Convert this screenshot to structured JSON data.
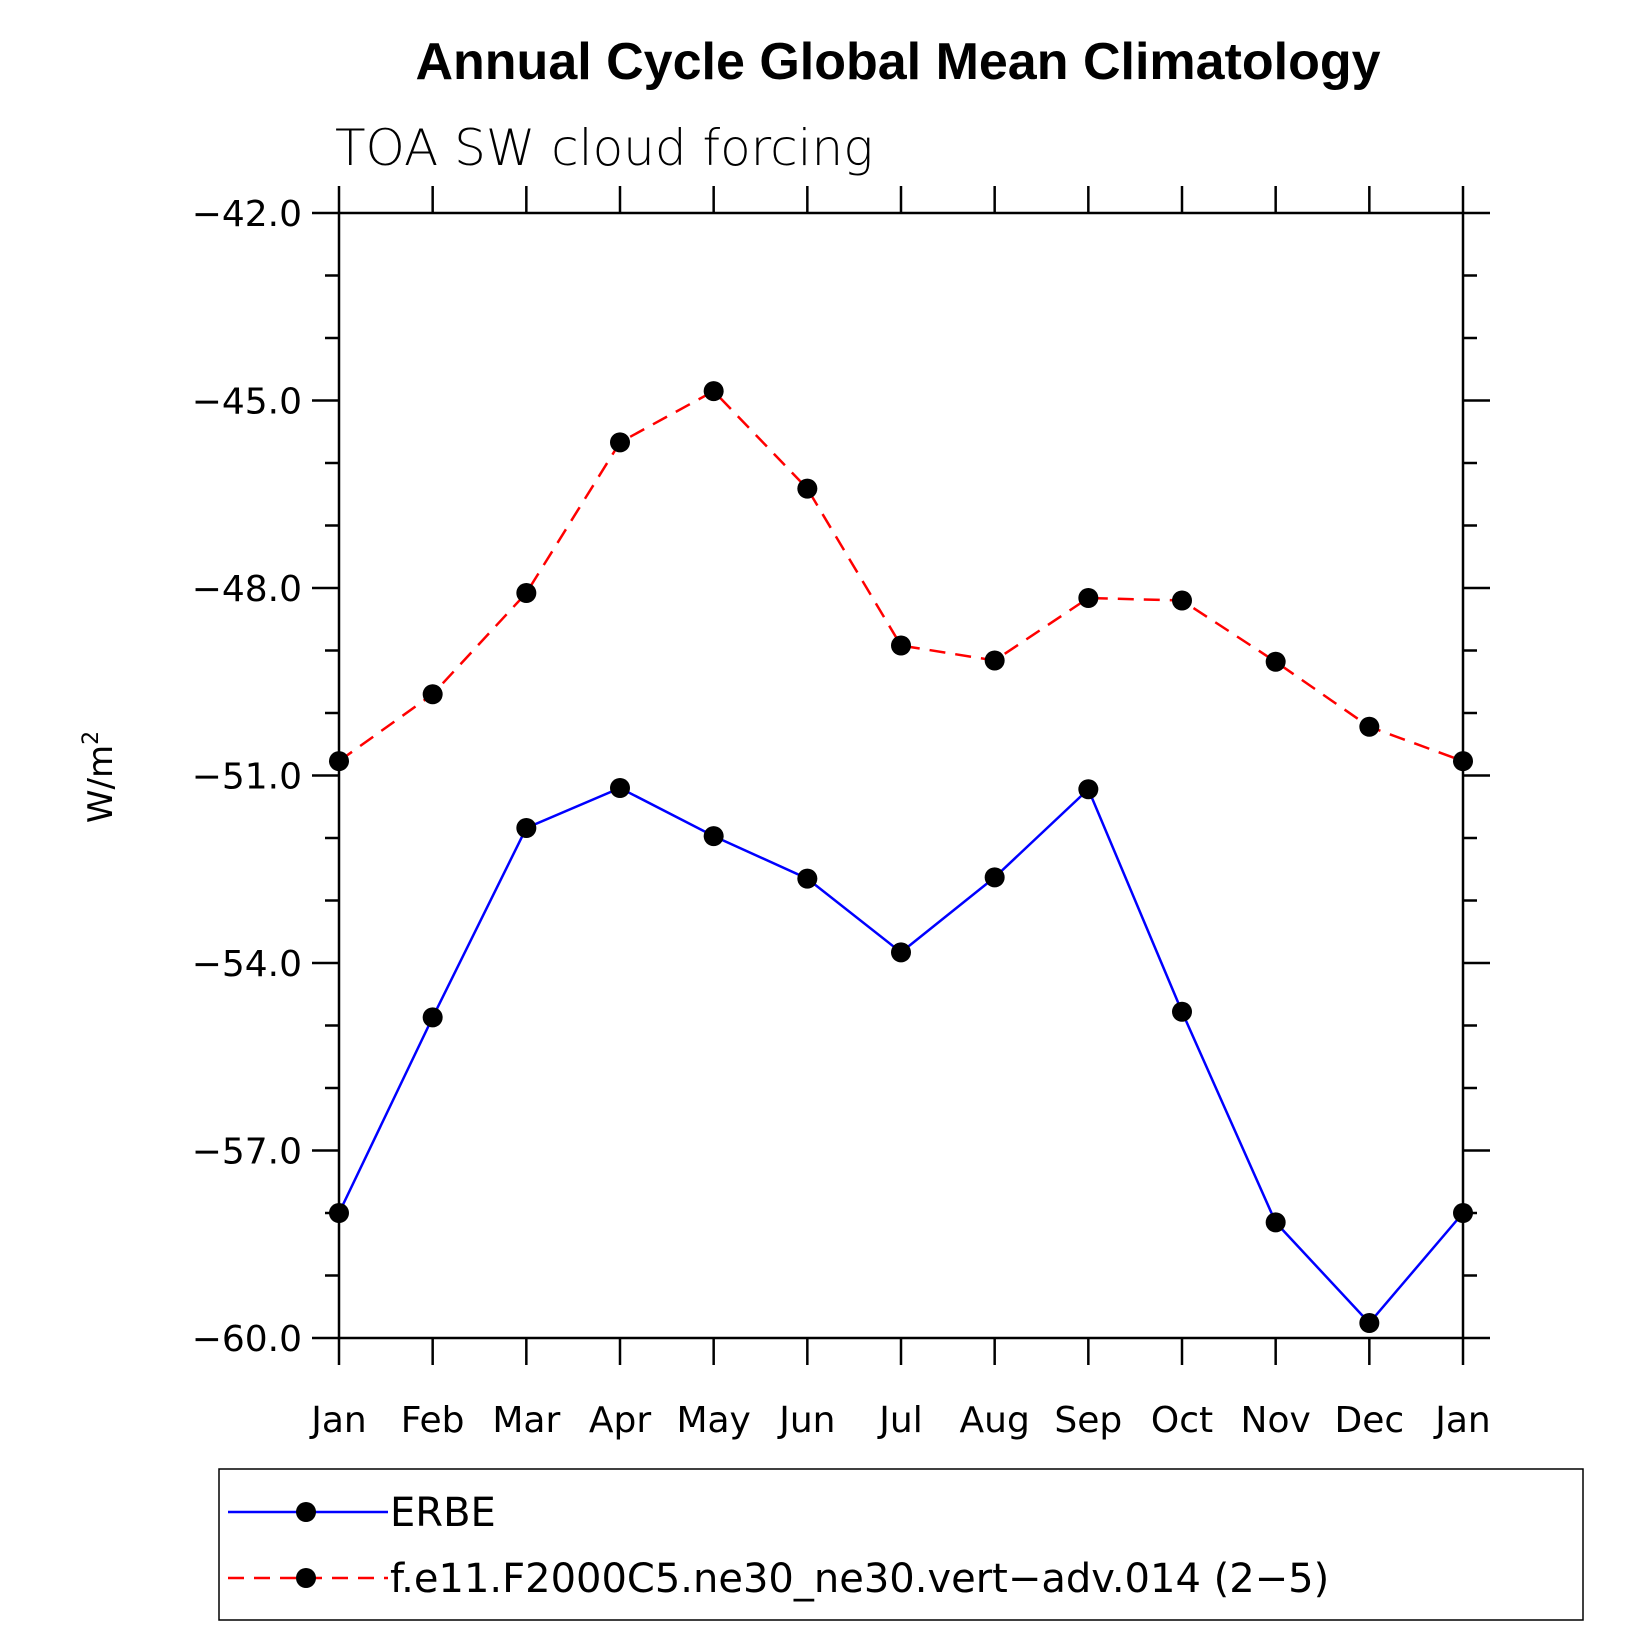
{
  "chart_data": {
    "type": "line",
    "title": "Annual Cycle Global Mean Climatology",
    "subtitle": "TOA SW cloud forcing",
    "ylabel": "W/m",
    "ylabel_sup": "2",
    "xlabel": "",
    "categories": [
      "Jan",
      "Feb",
      "Mar",
      "Apr",
      "May",
      "Jun",
      "Jul",
      "Aug",
      "Sep",
      "Oct",
      "Nov",
      "Dec",
      "Jan"
    ],
    "ylim": [
      -60.0,
      -42.0
    ],
    "yticks": [
      -42.0,
      -45.0,
      -48.0,
      -51.0,
      -54.0,
      -57.0,
      -60.0
    ],
    "ytick_labels": [
      "−42.0",
      "−45.0",
      "−48.0",
      "−51.0",
      "−54.0",
      "−57.0",
      "−60.0"
    ],
    "series": [
      {
        "name": "ERBE",
        "color": "#0000ff",
        "dash": "solid",
        "values": [
          -58.0,
          -54.87,
          -51.84,
          -51.2,
          -51.97,
          -52.65,
          -53.83,
          -52.63,
          -51.22,
          -54.78,
          -58.15,
          -59.76,
          -58.0
        ]
      },
      {
        "name": "f.e11.F2000C5.ne30_ne30.vert−adv.014 (2−5)",
        "color": "#ff0000",
        "dash": "dashed",
        "values": [
          -50.77,
          -49.7,
          -48.08,
          -45.67,
          -44.85,
          -46.41,
          -48.92,
          -49.16,
          -48.16,
          -48.2,
          -49.18,
          -50.22,
          -50.77
        ]
      }
    ],
    "marker_color": "#000000",
    "legend": "bottom"
  }
}
